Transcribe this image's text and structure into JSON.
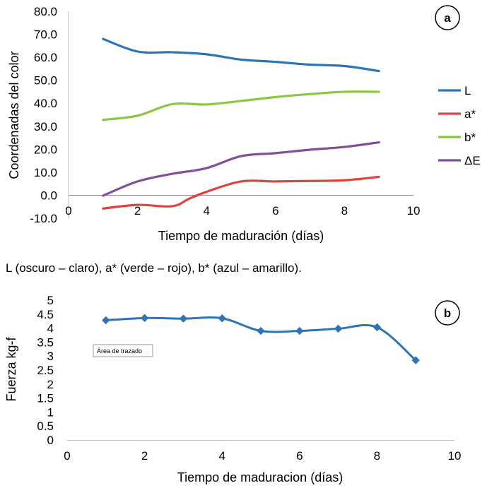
{
  "caption": "L (oscuro – claro), a* (verde – rojo), b* (azul – amarillo).",
  "chart_data": [
    {
      "type": "line",
      "panel_label": "a",
      "xlabel": "Tiempo de maduración (días)",
      "ylabel": "Coordenadas del color",
      "xlim": [
        0,
        10
      ],
      "ylim": [
        -10,
        80
      ],
      "x_ticks": [
        "0",
        "2",
        "4",
        "6",
        "8",
        "10"
      ],
      "y_ticks": [
        "-10.0",
        "0.0",
        "10.0",
        "20.0",
        "30.0",
        "40.0",
        "50.0",
        "60.0",
        "70.0",
        "80.0"
      ],
      "legend_position": "right",
      "grid": false,
      "series": [
        {
          "name": "L",
          "color": "#2E75B6",
          "x": [
            1,
            2,
            3,
            4,
            5,
            6,
            7,
            8,
            9
          ],
          "y": [
            68,
            62.5,
            62.2,
            61.3,
            59,
            58,
            56.8,
            56.2,
            54
          ]
        },
        {
          "name": "a*",
          "color": "#E0433A",
          "x": [
            1,
            2,
            3,
            3.5,
            4,
            5,
            6,
            7,
            8,
            9
          ],
          "y": [
            -5.8,
            -4.2,
            -4.8,
            -1.5,
            1.5,
            6,
            6,
            6.2,
            6.5,
            8
          ]
        },
        {
          "name": "b*",
          "color": "#8DC63F",
          "x": [
            1,
            2,
            3,
            4,
            5,
            6,
            7,
            8,
            9
          ],
          "y": [
            32.8,
            34.6,
            39.6,
            39.5,
            41,
            42.7,
            44,
            45,
            45
          ]
        },
        {
          "name": "ΔE",
          "color": "#7F4F9C",
          "x": [
            1,
            2,
            3,
            4,
            5,
            6,
            7,
            8,
            9
          ],
          "y": [
            -0.2,
            6,
            9.3,
            11.8,
            17,
            18.3,
            19.8,
            21,
            23
          ]
        }
      ]
    },
    {
      "type": "line",
      "panel_label": "b",
      "xlabel": "Tiempo de maduracion (días)",
      "ylabel": "Fuerza kg-f",
      "xlim": [
        0,
        10
      ],
      "ylim": [
        0,
        5
      ],
      "x_ticks": [
        "0",
        "2",
        "4",
        "6",
        "8",
        "10"
      ],
      "y_ticks": [
        "0",
        "0.5",
        "1",
        "1.5",
        "2",
        "2.5",
        "3",
        "3.5",
        "4",
        "4.5",
        "5"
      ],
      "tooltip": "Área de trazado",
      "grid": false,
      "series": [
        {
          "name": "",
          "color": "#2E75B6",
          "marker": "diamond",
          "x": [
            1,
            2,
            3,
            4,
            5,
            6,
            7,
            8,
            9
          ],
          "y": [
            4.28,
            4.36,
            4.34,
            4.35,
            3.9,
            3.9,
            3.98,
            4.03,
            2.85
          ]
        }
      ]
    }
  ]
}
